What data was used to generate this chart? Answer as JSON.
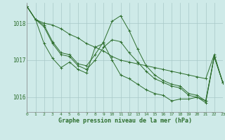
{
  "background_color": "#ceeae8",
  "grid_color": "#a8c8c8",
  "line_color": "#2d6e2d",
  "xlim": [
    0,
    23
  ],
  "ylim": [
    1015.6,
    1018.55
  ],
  "yticks": [
    1016,
    1017,
    1018
  ],
  "xticks": [
    0,
    1,
    2,
    3,
    4,
    5,
    6,
    7,
    8,
    9,
    10,
    11,
    12,
    13,
    14,
    15,
    16,
    17,
    18,
    19,
    20,
    21,
    22,
    23
  ],
  "xlabel": "Graphe pression niveau de la mer (hPa)",
  "series": [
    [
      1018.45,
      1018.1,
      1018.0,
      1017.95,
      1017.85,
      1017.7,
      1017.6,
      1017.45,
      1017.35,
      1017.25,
      1017.1,
      1017.0,
      1016.95,
      1016.9,
      1016.85,
      1016.8,
      1016.75,
      1016.7,
      1016.65,
      1016.6,
      1016.55,
      1016.5,
      1017.15,
      1016.4
    ],
    [
      1018.45,
      1018.1,
      1017.95,
      1017.5,
      1017.2,
      1017.15,
      1016.9,
      1016.85,
      1017.15,
      1017.5,
      1018.05,
      1018.2,
      1017.8,
      1017.3,
      1016.85,
      1016.6,
      1016.45,
      1016.35,
      1016.3,
      1016.1,
      1016.05,
      1015.9,
      1017.1,
      1016.4
    ],
    [
      1018.45,
      1018.1,
      1017.9,
      1017.45,
      1017.15,
      1017.1,
      1016.85,
      1016.75,
      1017.0,
      1017.35,
      1017.55,
      1017.5,
      1017.2,
      1016.95,
      1016.7,
      1016.5,
      1016.4,
      1016.3,
      1016.25,
      1016.05,
      1016.0,
      1015.9,
      1017.1,
      1016.4
    ],
    [
      1018.45,
      1018.1,
      1017.45,
      1017.05,
      1016.8,
      1016.95,
      1016.75,
      1016.65,
      1017.35,
      1017.45,
      1017.0,
      1016.6,
      1016.5,
      1016.35,
      1016.2,
      1016.1,
      1016.05,
      1015.9,
      1015.95,
      1015.95,
      1016.0,
      1015.85,
      1017.1,
      1016.4
    ]
  ]
}
